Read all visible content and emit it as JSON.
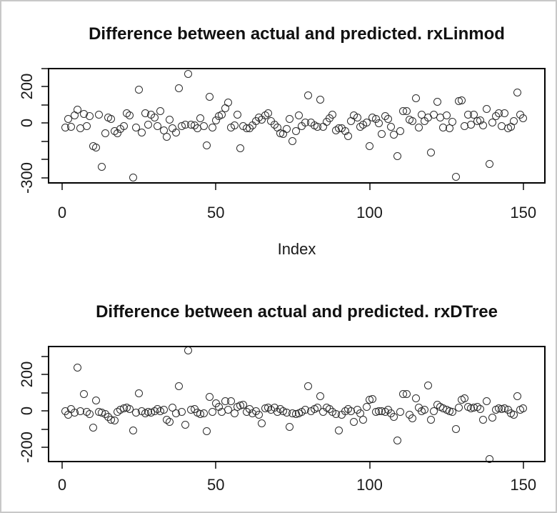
{
  "window": {
    "background_color": "#ffffff",
    "border_color": "#c8c8c8"
  },
  "chart_data": [
    {
      "type": "scatter",
      "title": "Difference between actual and predicted. rxLinmod",
      "xlabel": "Index",
      "ylabel": "",
      "marker": "open-circle",
      "marker_color": "#2b2b2b",
      "grid": false,
      "x_start": 1,
      "x_ticks": [
        0,
        50,
        100,
        150
      ],
      "x_tick_labels": [
        "0",
        "50",
        "100",
        "150"
      ],
      "xlim": [
        -5,
        157
      ],
      "y_ticks": [
        300,
        200,
        100,
        0,
        -100,
        -200,
        -300
      ],
      "y_tick_labels": [
        "",
        "200",
        "",
        "0",
        "",
        "",
        "-300"
      ],
      "ylim": [
        -333,
        302
      ],
      "values": [
        -25,
        23,
        -21,
        40,
        73,
        -29,
        50,
        -16,
        36,
        -129,
        -136,
        47,
        -240,
        -57,
        31,
        21,
        -44,
        -57,
        -34,
        -16,
        54,
        40,
        -300,
        -25,
        182,
        -54,
        51,
        -9,
        47,
        30,
        -16,
        63,
        -40,
        -77,
        18,
        -29,
        -51,
        191,
        -18,
        -8,
        270,
        -9,
        -15,
        -31,
        27,
        -18,
        -123,
        142,
        -25,
        12,
        36,
        47,
        80,
        110,
        -25,
        -12,
        44,
        -139,
        -16,
        -31,
        -31,
        -12,
        8,
        31,
        18,
        40,
        51,
        8,
        -8,
        -25,
        -57,
        -60,
        -34,
        23,
        -99,
        -47,
        40,
        -16,
        1,
        152,
        1,
        -12,
        -21,
        128,
        -21,
        5,
        27,
        44,
        -42,
        -29,
        -31,
        -47,
        -71,
        8,
        40,
        31,
        -21,
        -8,
        1,
        -129,
        31,
        21,
        -3,
        -60,
        36,
        23,
        -21,
        -64,
        -182,
        -47,
        63,
        63,
        18,
        8,
        136,
        -25,
        44,
        11,
        31,
        -162,
        44,
        115,
        31,
        -25,
        40,
        -31,
        5,
        -295,
        119,
        123,
        -16,
        47,
        -8,
        47,
        8,
        14,
        -12,
        76,
        -227,
        1,
        36,
        54,
        -16,
        54,
        -29,
        -21,
        11,
        165,
        44,
        25
      ]
    },
    {
      "type": "scatter",
      "title": "Difference between actual and predicted. rxDTree",
      "xlabel": "",
      "ylabel": "",
      "marker": "open-circle",
      "marker_color": "#2b2b2b",
      "grid": false,
      "x_start": 1,
      "x_ticks": [
        0,
        50,
        100,
        150
      ],
      "x_tick_labels": [
        "0",
        "50",
        "100",
        "150"
      ],
      "xlim": [
        -5,
        157
      ],
      "y_ticks": [
        300,
        200,
        100,
        0,
        -100,
        -200
      ],
      "y_tick_labels": [
        "",
        "200",
        "",
        "0",
        "",
        "-200"
      ],
      "ylim": [
        -282,
        357
      ],
      "values": [
        0,
        -20,
        9,
        -9,
        239,
        0,
        91,
        -4,
        -17,
        -91,
        56,
        -4,
        -9,
        -17,
        -33,
        -48,
        -52,
        -7,
        4,
        13,
        17,
        9,
        -109,
        -9,
        98,
        0,
        -13,
        -4,
        -9,
        0,
        9,
        0,
        4,
        -48,
        -59,
        17,
        -13,
        135,
        -7,
        -75,
        331,
        4,
        9,
        -9,
        -17,
        -13,
        -111,
        78,
        -4,
        43,
        22,
        -7,
        52,
        4,
        52,
        -13,
        20,
        30,
        35,
        -4,
        9,
        -13,
        0,
        -22,
        -69,
        13,
        17,
        4,
        17,
        -4,
        9,
        0,
        -9,
        -87,
        -13,
        -17,
        -13,
        -7,
        4,
        135,
        0,
        9,
        17,
        82,
        -4,
        17,
        9,
        -4,
        -17,
        -109,
        -22,
        0,
        9,
        0,
        -59,
        4,
        -13,
        -48,
        20,
        59,
        65,
        -7,
        0,
        0,
        -4,
        4,
        -13,
        -35,
        -161,
        -4,
        91,
        91,
        -22,
        -43,
        69,
        17,
        0,
        4,
        140,
        -48,
        0,
        33,
        22,
        13,
        4,
        0,
        -7,
        -100,
        17,
        62,
        69,
        22,
        13,
        17,
        22,
        9,
        -48,
        52,
        -266,
        -39,
        4,
        13,
        9,
        13,
        4,
        -13,
        -22,
        82,
        4,
        13
      ]
    }
  ]
}
